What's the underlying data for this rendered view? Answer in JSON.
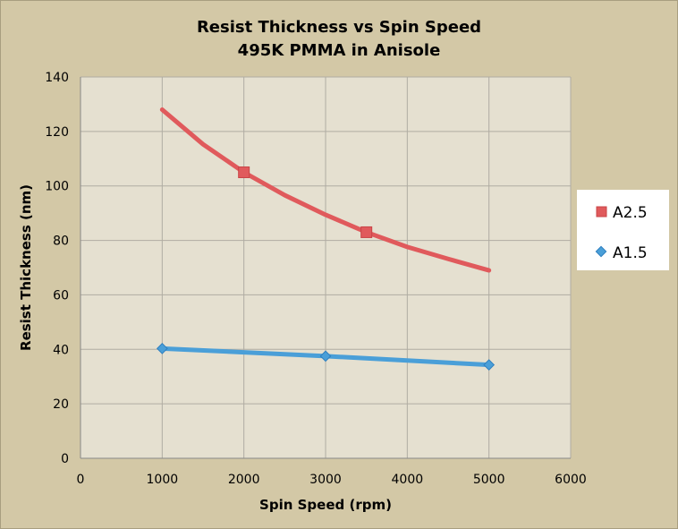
{
  "chart_data": {
    "type": "line",
    "title": [
      "Resist Thickness vs Spin Speed",
      "495K PMMA in Anisole"
    ],
    "xlabel": "Spin Speed (rpm)",
    "ylabel": "Resist Thickness (nm)",
    "xlim": [
      0,
      6000
    ],
    "ylim": [
      0,
      140
    ],
    "xticks": [
      "0",
      "1000",
      "2000",
      "3000",
      "4000",
      "5000",
      "6000"
    ],
    "yticks": [
      "0",
      "20",
      "40",
      "60",
      "80",
      "100",
      "120",
      "140"
    ],
    "grid": true,
    "legend_position": "right",
    "series": [
      {
        "name": "A2.5",
        "color": "#e05a5c",
        "marker": "square",
        "curve": [
          [
            1000,
            128
          ],
          [
            1500,
            115.3
          ],
          [
            2000,
            105
          ],
          [
            2500,
            96.6
          ],
          [
            3000,
            89.4
          ],
          [
            3500,
            83
          ],
          [
            4000,
            77.6
          ],
          [
            4500,
            73.2
          ],
          [
            5000,
            69
          ]
        ],
        "markers": [
          [
            2000,
            105
          ],
          [
            3500,
            83
          ]
        ]
      },
      {
        "name": "A1.5",
        "color": "#4a9fd8",
        "marker": "diamond",
        "curve": [
          [
            1000,
            40.3
          ],
          [
            3000,
            37.5
          ],
          [
            5000,
            34.3
          ]
        ],
        "markers": [
          [
            1000,
            40.3
          ],
          [
            3000,
            37.5
          ],
          [
            5000,
            34.3
          ]
        ]
      }
    ],
    "colors": {
      "background": "#d3c8a6",
      "plot_area": "#e5e0d0",
      "grid": "#b0aca2"
    }
  }
}
